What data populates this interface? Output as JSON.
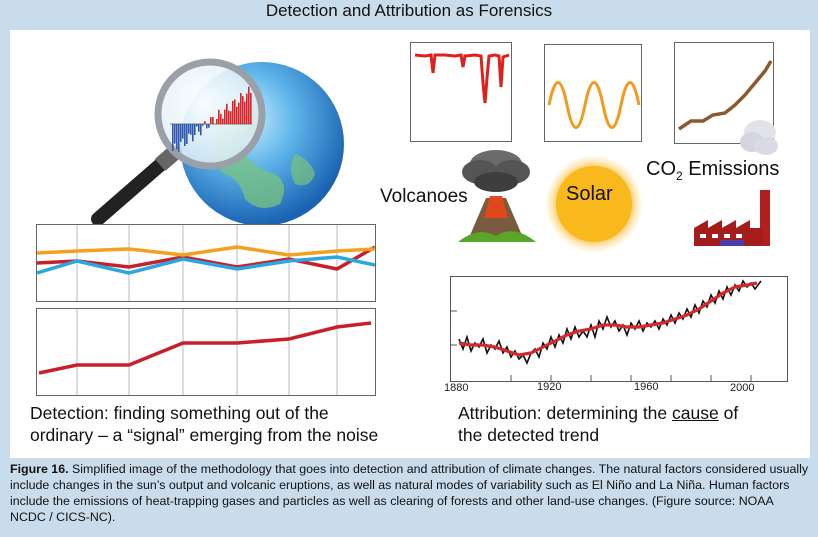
{
  "title": "Detection and Attribution as Forensics",
  "labels": {
    "volcanoes": "Volcanoes",
    "solar": "Solar",
    "co2": "CO",
    "co2_sub": "2",
    "co2_rest": " Emissions"
  },
  "trend_axis": {
    "ticks": [
      "1880",
      "1920",
      "1960",
      "2000"
    ]
  },
  "detection": {
    "line1": "Detection: finding something out of the",
    "line2": "ordinary – a “signal” emerging from the noise"
  },
  "attribution": {
    "prefix": "Attribution: determining the ",
    "cause": "cause",
    "suffix": " of",
    "line2": "the detected trend"
  },
  "caption": {
    "label": "Figure 16.",
    "text": " Simplified image of the methodology that goes into detection and attribution of climate changes. The natural factors considered usually include changes in the sun’s output and volcanic eruptions, as well as natural modes of variability such as El Niño and La Niña. Human factors include the emissions of heat-trapping gases and particles as well as clearing of forests and other land-use changes. (Figure source: NOAA NCDC / CICS-NC)."
  },
  "colors": {
    "red": "#c8202a",
    "orange": "#f4a020",
    "blue": "#2aa6e0",
    "brown": "#8a5a2a",
    "panel_bg": "#c9dcec"
  }
}
